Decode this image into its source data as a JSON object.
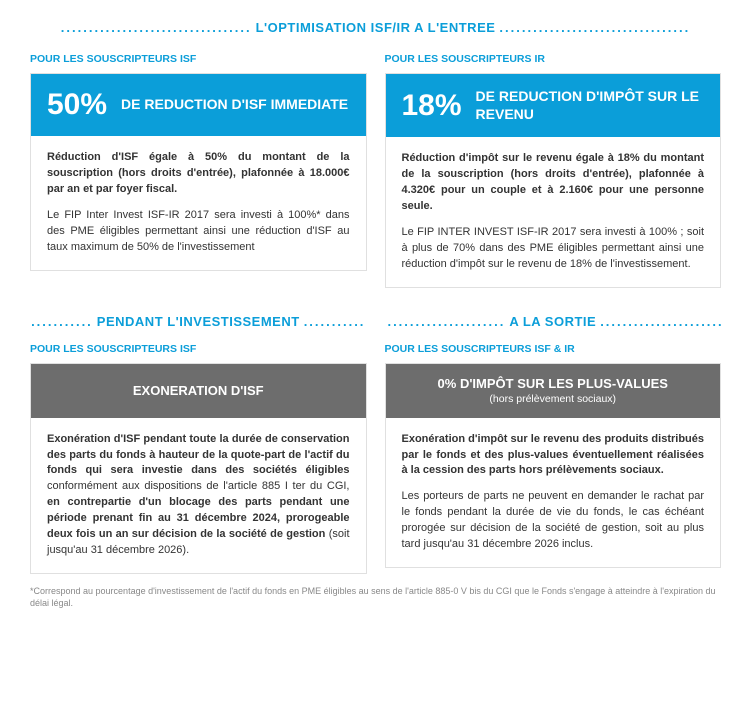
{
  "colors": {
    "accent": "#0b9ed9",
    "grey_header": "#6d6d6d",
    "text": "#333333",
    "border": "#e0e0e0",
    "footnote": "#888888",
    "background": "#ffffff"
  },
  "section1": {
    "title": "L'OPTIMISATION ISF/IR A L'ENTREE",
    "left": {
      "subhead": "POUR LES SOUSCRIPTEURS ISF",
      "big": "50%",
      "headline": "DE REDUCTION D'ISF IMMEDIATE",
      "p1": "Réduction d'ISF égale à 50% du montant de la souscription (hors droits d'entrée), plafonnée à 18.000€ par an et par foyer fiscal.",
      "p2": "Le FIP Inter Invest ISF-IR 2017 sera investi à 100%* dans des PME éligibles permettant ainsi une réduction d'ISF au taux maximum de 50% de l'investissement"
    },
    "right": {
      "subhead": "POUR LES SOUSCRIPTEURS IR",
      "big": "18%",
      "headline": "DE REDUCTION D'IMPÔT SUR LE REVENU",
      "p1": "Réduction d'impôt sur le revenu égale à 18% du montant de la souscription (hors droits d'entrée), plafonnée à 4.320€ pour un couple et à 2.160€ pour une personne seule.",
      "p2": "Le FIP INTER INVEST ISF-IR 2017 sera investi à 100% ; soit à plus de 70% dans des PME éligibles permettant ainsi une réduction d'impôt sur le revenu de 18% de l'investissement."
    }
  },
  "section2": {
    "left_title": "PENDANT L'INVESTISSEMENT",
    "right_title": "A LA SORTIE",
    "left": {
      "subhead": "POUR LES SOUSCRIPTEURS ISF",
      "head": "EXONERATION D'ISF",
      "body_bold1": "Exonération d'ISF pendant toute la durée de conservation des parts du fonds à hauteur de la quote-part de l'actif du fonds qui sera investie dans des sociétés éligibles",
      "body_plain1": " conformément aux dispositions de l'article 885 I ter du CGI, ",
      "body_bold2": "en contrepartie d'un blocage des parts pendant une période prenant fin au 31 décembre 2024, prorogeable deux fois un an sur décision de la société de gestion",
      "body_plain2": " (soit jusqu'au 31 décembre 2026)."
    },
    "right": {
      "subhead": "POUR LES SOUSCRIPTEURS ISF & IR",
      "head": "0% D'IMPÔT SUR LES PLUS-VALUES",
      "head_sub": "(hors prélèvement sociaux)",
      "p1": "Exonération d'impôt sur le revenu des produits distribués par le fonds et des plus-values éventuellement réalisées à la cession des parts hors prélèvements sociaux.",
      "p2": "Les porteurs de parts ne peuvent en demander le rachat par le fonds pendant la durée de vie du fonds, le cas échéant prorogée sur décision de la société de gestion, soit au plus tard jusqu'au 31 décembre 2026 inclus."
    }
  },
  "footnote": "*Correspond au pourcentage d'investissement de l'actif du fonds en PME éligibles au sens de l'article 885-0 V bis du CGI que le Fonds s'engage à atteindre à l'expiration du délai légal."
}
